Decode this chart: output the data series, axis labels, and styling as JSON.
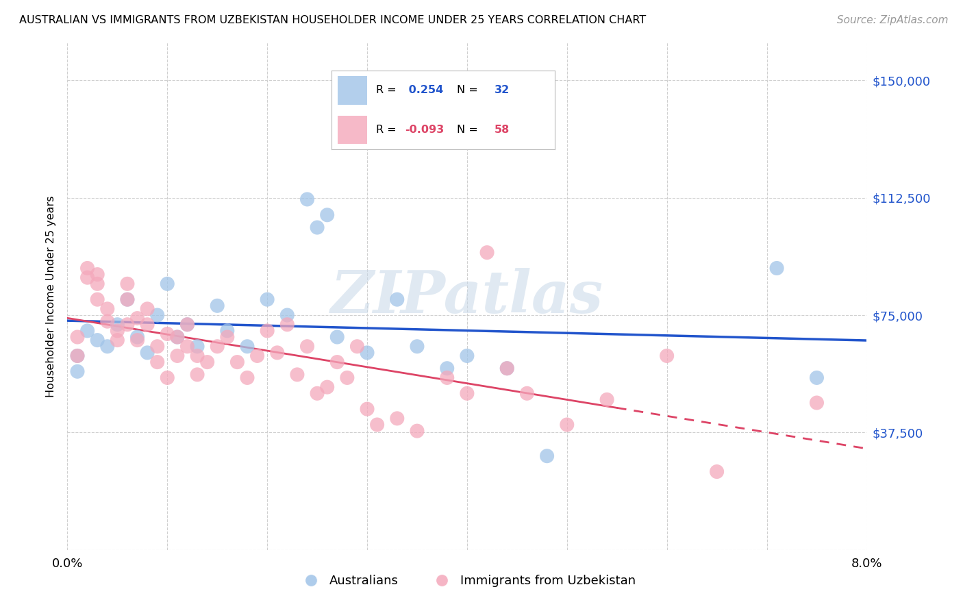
{
  "title": "AUSTRALIAN VS IMMIGRANTS FROM UZBEKISTAN HOUSEHOLDER INCOME UNDER 25 YEARS CORRELATION CHART",
  "source": "Source: ZipAtlas.com",
  "ylabel": "Householder Income Under 25 years",
  "xlim": [
    0.0,
    0.08
  ],
  "ylim": [
    0,
    162000
  ],
  "yticks": [
    0,
    37500,
    75000,
    112500,
    150000
  ],
  "ytick_labels": [
    "",
    "$37,500",
    "$75,000",
    "$112,500",
    "$150,000"
  ],
  "xticks": [
    0.0,
    0.01,
    0.02,
    0.03,
    0.04,
    0.05,
    0.06,
    0.07,
    0.08
  ],
  "xtick_labels": [
    "0.0%",
    "",
    "",
    "",
    "",
    "",
    "",
    "",
    "8.0%"
  ],
  "blue_color": "#a0c4e8",
  "pink_color": "#f4a8bb",
  "blue_line_color": "#2255cc",
  "pink_line_color": "#dd4466",
  "legend_R_blue": " 0.254",
  "legend_N_blue": "32",
  "legend_R_pink": "-0.093",
  "legend_N_pink": "58",
  "legend_label_blue": "Australians",
  "legend_label_pink": "Immigrants from Uzbekistan",
  "watermark": "ZIPatlas",
  "blue_x": [
    0.001,
    0.001,
    0.002,
    0.003,
    0.004,
    0.005,
    0.006,
    0.007,
    0.008,
    0.009,
    0.01,
    0.011,
    0.012,
    0.013,
    0.015,
    0.016,
    0.018,
    0.02,
    0.022,
    0.024,
    0.025,
    0.026,
    0.027,
    0.03,
    0.033,
    0.035,
    0.038,
    0.04,
    0.044,
    0.048,
    0.071,
    0.075
  ],
  "blue_y": [
    62000,
    57000,
    70000,
    67000,
    65000,
    72000,
    80000,
    68000,
    63000,
    75000,
    85000,
    68000,
    72000,
    65000,
    78000,
    70000,
    65000,
    80000,
    75000,
    112000,
    103000,
    107000,
    68000,
    63000,
    80000,
    65000,
    58000,
    62000,
    58000,
    30000,
    90000,
    55000
  ],
  "pink_x": [
    0.001,
    0.001,
    0.002,
    0.002,
    0.003,
    0.003,
    0.003,
    0.004,
    0.004,
    0.005,
    0.005,
    0.006,
    0.006,
    0.006,
    0.007,
    0.007,
    0.008,
    0.008,
    0.009,
    0.009,
    0.01,
    0.01,
    0.011,
    0.011,
    0.012,
    0.012,
    0.013,
    0.013,
    0.014,
    0.015,
    0.016,
    0.017,
    0.018,
    0.019,
    0.02,
    0.021,
    0.022,
    0.023,
    0.024,
    0.025,
    0.026,
    0.027,
    0.028,
    0.029,
    0.03,
    0.031,
    0.033,
    0.035,
    0.038,
    0.04,
    0.042,
    0.044,
    0.046,
    0.05,
    0.054,
    0.06,
    0.065,
    0.075
  ],
  "pink_y": [
    62000,
    68000,
    90000,
    87000,
    85000,
    88000,
    80000,
    77000,
    73000,
    70000,
    67000,
    80000,
    85000,
    72000,
    74000,
    67000,
    77000,
    72000,
    65000,
    60000,
    69000,
    55000,
    68000,
    62000,
    65000,
    72000,
    62000,
    56000,
    60000,
    65000,
    68000,
    60000,
    55000,
    62000,
    70000,
    63000,
    72000,
    56000,
    65000,
    50000,
    52000,
    60000,
    55000,
    65000,
    45000,
    40000,
    42000,
    38000,
    55000,
    50000,
    95000,
    58000,
    50000,
    40000,
    48000,
    62000,
    25000,
    47000
  ]
}
